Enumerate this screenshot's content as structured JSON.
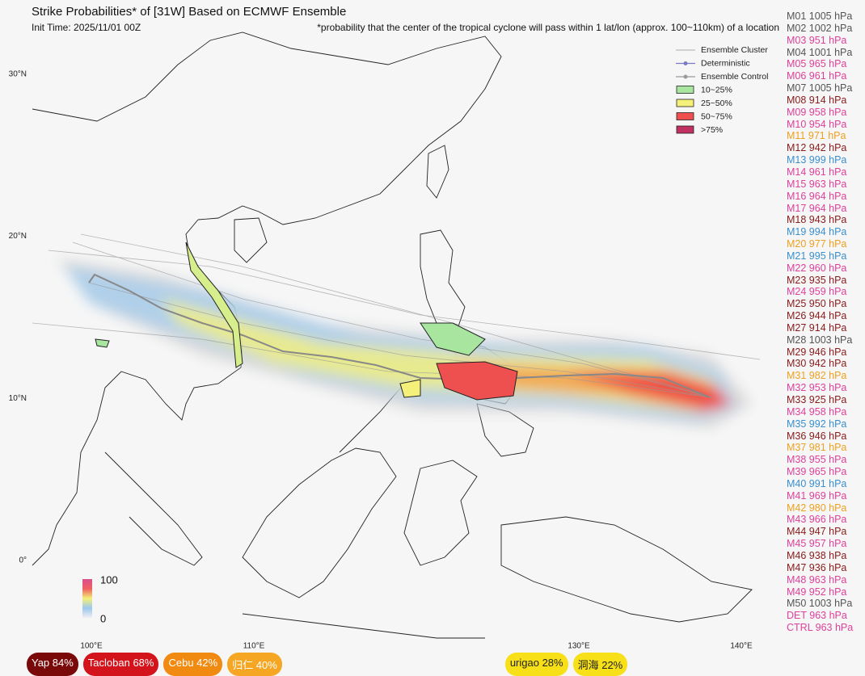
{
  "header": {
    "title": "Strike Probabilities* of [31W] Based on ECMWF Ensemble",
    "init_time": "Init Time: 2025/11/01 00Z",
    "note": "*probability that the center of the tropical cyclone will pass within 1 lat/lon (approx. 100~110km) of a location"
  },
  "map": {
    "lon_labels": [
      {
        "value": 100,
        "label": "100°E"
      },
      {
        "value": 110,
        "label": "110°E"
      },
      {
        "value": 130,
        "label": "130°E"
      },
      {
        "value": 140,
        "label": "140°E"
      }
    ],
    "lat_labels": [
      {
        "value": 30,
        "label": "30°N"
      },
      {
        "value": 20,
        "label": "20°N"
      },
      {
        "value": 10,
        "label": "10°N"
      },
      {
        "value": 0,
        "label": "0°"
      }
    ]
  },
  "legend": [
    {
      "label": "Ensemble Cluster",
      "kind": "line",
      "color": "#bbbbbb"
    },
    {
      "label": "Deterministic",
      "kind": "dot-line",
      "color": "#7b7bc0"
    },
    {
      "label": "Ensemble Control",
      "kind": "dot-line",
      "color": "#999999"
    },
    {
      "label": "10~25%",
      "kind": "box",
      "color": "#a8e6a0"
    },
    {
      "label": "25~50%",
      "kind": "box",
      "color": "#f4f07a"
    },
    {
      "label": "50~75%",
      "kind": "box",
      "color": "#ee5050"
    },
    {
      "label": ">75%",
      "kind": "box",
      "color": "#c03060"
    }
  ],
  "color_bar": {
    "max_label": "100",
    "min_label": "0"
  },
  "members": [
    {
      "text": "M01 1005 hPa",
      "color": "#555555"
    },
    {
      "text": "M02 1002 hPa",
      "color": "#555555"
    },
    {
      "text": "M03 951 hPa",
      "color": "#e0409a"
    },
    {
      "text": "M04 1001 hPa",
      "color": "#555555"
    },
    {
      "text": "M05 965 hPa",
      "color": "#e0409a"
    },
    {
      "text": "M06 961 hPa",
      "color": "#e0409a"
    },
    {
      "text": "M07 1005 hPa",
      "color": "#555555"
    },
    {
      "text": "M08 914 hPa",
      "color": "#8b1a1a"
    },
    {
      "text": "M09 958 hPa",
      "color": "#e0409a"
    },
    {
      "text": "M10 954 hPa",
      "color": "#e0409a"
    },
    {
      "text": "M11 971 hPa",
      "color": "#f0a020"
    },
    {
      "text": "M12 942 hPa",
      "color": "#8b1a1a"
    },
    {
      "text": "M13 999 hPa",
      "color": "#3a8fd0"
    },
    {
      "text": "M14 961 hPa",
      "color": "#e0409a"
    },
    {
      "text": "M15 963 hPa",
      "color": "#e0409a"
    },
    {
      "text": "M16 964 hPa",
      "color": "#e0409a"
    },
    {
      "text": "M17 964 hPa",
      "color": "#e0409a"
    },
    {
      "text": "M18 943 hPa",
      "color": "#8b1a1a"
    },
    {
      "text": "M19 994 hPa",
      "color": "#3a8fd0"
    },
    {
      "text": "M20 977 hPa",
      "color": "#f0a020"
    },
    {
      "text": "M21 995 hPa",
      "color": "#3a8fd0"
    },
    {
      "text": "M22 960 hPa",
      "color": "#e0409a"
    },
    {
      "text": "M23 935 hPa",
      "color": "#8b1a1a"
    },
    {
      "text": "M24 959 hPa",
      "color": "#e0409a"
    },
    {
      "text": "M25 950 hPa",
      "color": "#8b1a1a"
    },
    {
      "text": "M26 944 hPa",
      "color": "#8b1a1a"
    },
    {
      "text": "M27 914 hPa",
      "color": "#8b1a1a"
    },
    {
      "text": "M28 1003 hPa",
      "color": "#555555"
    },
    {
      "text": "M29 946 hPa",
      "color": "#8b1a1a"
    },
    {
      "text": "M30 942 hPa",
      "color": "#8b1a1a"
    },
    {
      "text": "M31 982 hPa",
      "color": "#f0a020"
    },
    {
      "text": "M32 953 hPa",
      "color": "#e0409a"
    },
    {
      "text": "M33 925 hPa",
      "color": "#8b1a1a"
    },
    {
      "text": "M34 958 hPa",
      "color": "#e0409a"
    },
    {
      "text": "M35 992 hPa",
      "color": "#3a8fd0"
    },
    {
      "text": "M36 946 hPa",
      "color": "#8b1a1a"
    },
    {
      "text": "M37 981 hPa",
      "color": "#f0a020"
    },
    {
      "text": "M38 955 hPa",
      "color": "#e0409a"
    },
    {
      "text": "M39 965 hPa",
      "color": "#e0409a"
    },
    {
      "text": "M40 991 hPa",
      "color": "#3a8fd0"
    },
    {
      "text": "M41 969 hPa",
      "color": "#e0409a"
    },
    {
      "text": "M42 980 hPa",
      "color": "#f0a020"
    },
    {
      "text": "M43 966 hPa",
      "color": "#e0409a"
    },
    {
      "text": "M44 947 hPa",
      "color": "#8b1a1a"
    },
    {
      "text": "M45 957 hPa",
      "color": "#e0409a"
    },
    {
      "text": "M46 938 hPa",
      "color": "#8b1a1a"
    },
    {
      "text": "M47 936 hPa",
      "color": "#8b1a1a"
    },
    {
      "text": "M48 963 hPa",
      "color": "#e0409a"
    },
    {
      "text": "M49 952 hPa",
      "color": "#e0409a"
    },
    {
      "text": "M50 1003 hPa",
      "color": "#555555"
    },
    {
      "text": "DET 963 hPa",
      "color": "#e0409a"
    },
    {
      "text": "CTRL 963 hPa",
      "color": "#e0409a"
    }
  ],
  "locations": [
    {
      "text": "Yap  84%",
      "color": "#7a0a0a",
      "text_color": "#ffffff"
    },
    {
      "text": "Tacloban 68%",
      "color": "#d4141c",
      "text_color": "#ffffff"
    },
    {
      "text": "Cebu 42%",
      "color": "#f08a10",
      "text_color": "#ffffff"
    },
    {
      "text": "归仁 40%",
      "color": "#f5a623",
      "text_color": "#ffffff"
    },
    {
      "text": "urigao 28%",
      "color": "#f7e017",
      "text_color": "#222222"
    },
    {
      "text": "洞海 22%",
      "color": "#f7e017",
      "text_color": "#222222"
    }
  ]
}
